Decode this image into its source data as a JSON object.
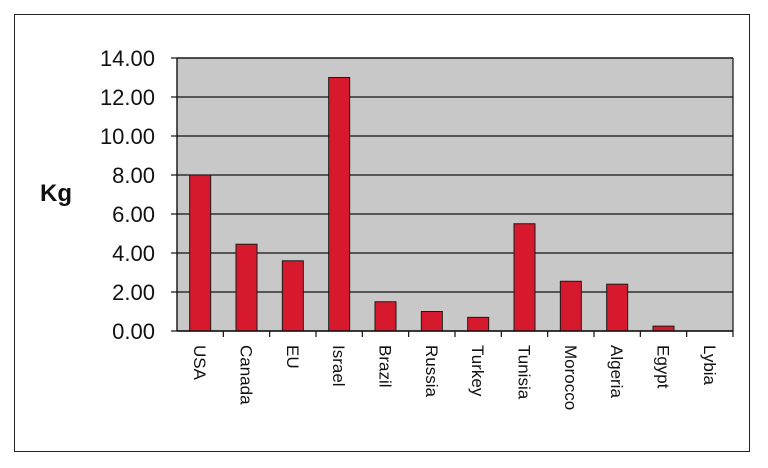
{
  "chart_data": {
    "type": "bar",
    "title": "",
    "xlabel": "",
    "ylabel": "Kg",
    "ylim": [
      0,
      14
    ],
    "yticks": [
      "0.00",
      "2.00",
      "4.00",
      "6.00",
      "8.00",
      "10.00",
      "12.00",
      "14.00"
    ],
    "grid": true,
    "bar_color": "#d7192d",
    "plot_background": "#c8c8c8",
    "categories": [
      "USA",
      "Canada",
      "EU",
      "Israel",
      "Brazil",
      "Russia",
      "Turkey",
      "Tunisia",
      "Morocco",
      "Algeria",
      "Egypt",
      "Lybia"
    ],
    "values": [
      8.0,
      4.45,
      3.6,
      13.0,
      1.5,
      1.0,
      0.7,
      5.5,
      2.55,
      2.4,
      0.25,
      0.0
    ]
  }
}
